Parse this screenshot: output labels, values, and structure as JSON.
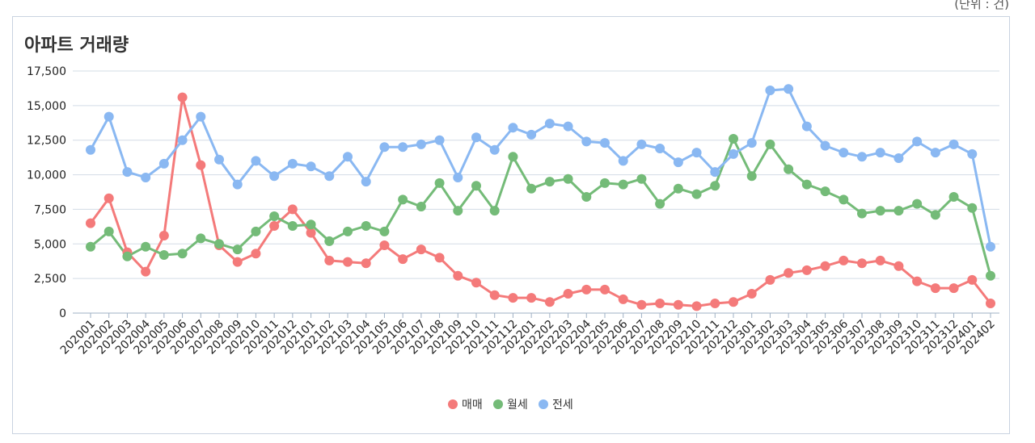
{
  "unit_note": "(단위 : 건)",
  "chart_data": {
    "type": "line",
    "title": "아파트 거래량",
    "ylim": [
      0,
      17500
    ],
    "yticks": [
      0,
      2500,
      5000,
      7500,
      10000,
      12500,
      15000,
      17500
    ],
    "ytick_labels": [
      "0",
      "2,500",
      "5,000",
      "7,500",
      "10,000",
      "12,500",
      "15,000",
      "17,500"
    ],
    "grid": true,
    "legend_position": "bottom",
    "x": [
      "202001",
      "202002",
      "202003",
      "202004",
      "202005",
      "202006",
      "202007",
      "202008",
      "202009",
      "202010",
      "202011",
      "202012",
      "202101",
      "202102",
      "202103",
      "202104",
      "202105",
      "202106",
      "202107",
      "202108",
      "202109",
      "202110",
      "202111",
      "202112",
      "202201",
      "202202",
      "202203",
      "202204",
      "202205",
      "202206",
      "202207",
      "202208",
      "202209",
      "202210",
      "202211",
      "202212",
      "202301",
      "202302",
      "202303",
      "202304",
      "202305",
      "202306",
      "202307",
      "202308",
      "202309",
      "202310",
      "202311",
      "202312",
      "202401",
      "202402"
    ],
    "series": [
      {
        "name": "매매",
        "color": "#f47a7a",
        "values": [
          6500,
          8300,
          4400,
          3000,
          5600,
          15600,
          10700,
          4900,
          3700,
          4300,
          6300,
          7500,
          5800,
          3800,
          3700,
          3600,
          4900,
          3900,
          4600,
          4000,
          2700,
          2200,
          1300,
          1100,
          1100,
          800,
          1400,
          1700,
          1700,
          1000,
          600,
          700,
          600,
          500,
          700,
          800,
          1400,
          2400,
          2900,
          3100,
          3400,
          3800,
          3600,
          3800,
          3400,
          2300,
          1800,
          1800,
          2400,
          700
        ]
      },
      {
        "name": "월세",
        "color": "#74bb78",
        "values": [
          4800,
          5900,
          4100,
          4800,
          4200,
          4300,
          5400,
          5000,
          4600,
          5900,
          7000,
          6300,
          6400,
          5200,
          5900,
          6300,
          5900,
          8200,
          7700,
          9400,
          7400,
          9200,
          7400,
          11300,
          9000,
          9500,
          9700,
          8400,
          9400,
          9300,
          9700,
          7900,
          9000,
          8600,
          9200,
          12600,
          9900,
          12200,
          10400,
          9300,
          8800,
          8200,
          7200,
          7400,
          7400,
          7900,
          7100,
          8400,
          7600,
          2700
        ]
      },
      {
        "name": "전세",
        "color": "#8ab8f2",
        "values": [
          11800,
          14200,
          10200,
          9800,
          10800,
          12500,
          14200,
          11100,
          9300,
          11000,
          9900,
          10800,
          10600,
          9900,
          11300,
          9500,
          12000,
          12000,
          12200,
          12500,
          9800,
          12700,
          11800,
          13400,
          12900,
          13700,
          13500,
          12400,
          12300,
          11000,
          12200,
          11900,
          10900,
          11600,
          10200,
          11500,
          12300,
          16100,
          16200,
          13500,
          12100,
          11600,
          11300,
          11600,
          11200,
          12400,
          11600,
          12200,
          11500,
          4800
        ]
      }
    ]
  }
}
